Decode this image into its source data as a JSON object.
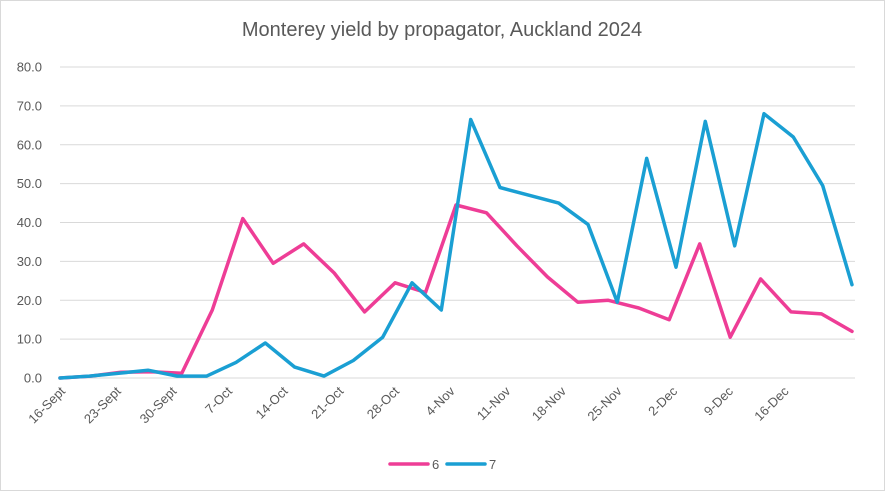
{
  "chart_data": {
    "type": "line",
    "title": "Monterey yield by propagator, Auckland 2024",
    "xlabel": "",
    "ylabel": "",
    "ylim": [
      0,
      80
    ],
    "yticks": [
      "0.0",
      "10.0",
      "20.0",
      "30.0",
      "40.0",
      "50.0",
      "60.0",
      "70.0",
      "80.0"
    ],
    "x_tick_labels": [
      "16-Sept",
      "23-Sept",
      "30-Sept",
      "7-Oct",
      "14-Oct",
      "21-Oct",
      "28-Oct",
      "4-Nov",
      "11-Nov",
      "18-Nov",
      "25-Nov",
      "2-Dec",
      "9-Dec",
      "16-Dec"
    ],
    "grid": "horizontal",
    "legend_position": "bottom",
    "series": [
      {
        "name": "6",
        "color": "#ee3d96",
        "values": [
          0,
          0.5,
          1.5,
          1.6,
          1.2,
          17.5,
          41,
          29.5,
          34.5,
          27,
          17,
          24.5,
          22,
          44.5,
          42.5,
          34,
          26,
          19.5,
          20,
          18,
          15,
          34.5,
          10.5,
          25.5,
          17,
          16.5,
          12
        ]
      },
      {
        "name": "7",
        "color": "#1a9fd3",
        "values": [
          0,
          0.5,
          1.2,
          2,
          0.5,
          0.5,
          4,
          9,
          2.8,
          0.5,
          4.5,
          10.5,
          24.5,
          17.5,
          66.5,
          49,
          47,
          45,
          39.5,
          19.5,
          56.5,
          28.5,
          66,
          34,
          68,
          62,
          49.5,
          24
        ]
      }
    ]
  }
}
